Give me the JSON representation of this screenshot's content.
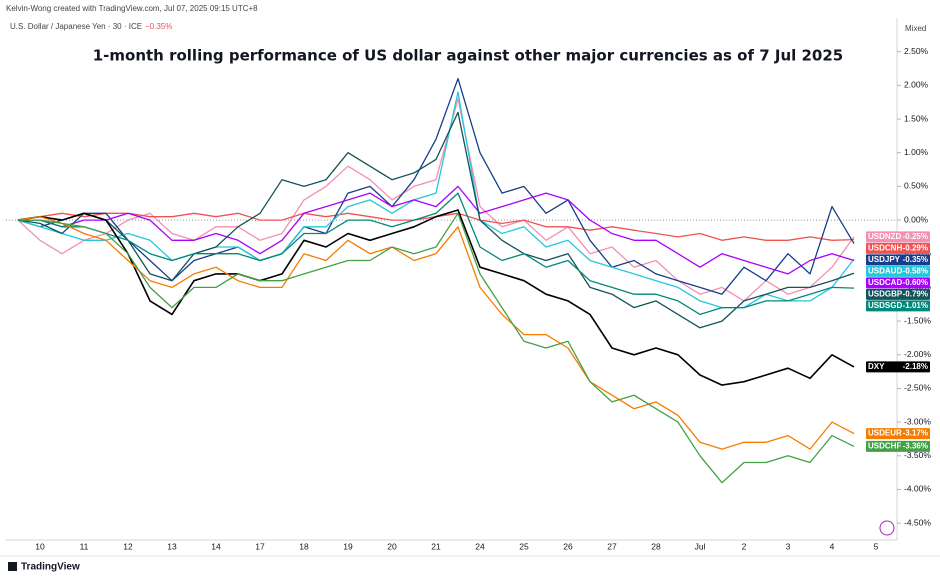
{
  "header": {
    "author_line": "Kelvin-Wong created with TradingView.com, Jul 07, 2025 09:15 UTC+8",
    "symbol_line": "U.S. Dollar / Japanese Yen · 30 · ICE",
    "change": "−0.35%",
    "mode": "Mixed",
    "brand": "TradingView"
  },
  "chart_data": {
    "type": "line",
    "title": "1-month rolling performance of US dollar against other major currencies as of 7 Jul 2025",
    "categories": [
      null,
      "10",
      null,
      "11",
      null,
      "12",
      null,
      "13",
      null,
      "14",
      null,
      "17",
      null,
      "18",
      null,
      "19",
      null,
      "20",
      null,
      "21",
      null,
      "24",
      null,
      "25",
      null,
      "26",
      null,
      "27",
      null,
      "28",
      null,
      "Jul",
      null,
      "2",
      null,
      "3",
      null,
      "4",
      null,
      "5"
    ],
    "ylim": [
      -4.75,
      3.0
    ],
    "yticks": [
      {
        "value": 2.5,
        "label": "2.50%"
      },
      {
        "value": 2.0,
        "label": "2.00%"
      },
      {
        "value": 1.5,
        "label": "1.50%"
      },
      {
        "value": 1.0,
        "label": "1.00%"
      },
      {
        "value": 0.5,
        "label": "0.50%"
      },
      {
        "value": 0.0,
        "label": "0.00%"
      },
      {
        "value": -0.5,
        "label": "-0.50%"
      },
      {
        "value": -1.0,
        "label": "-1.00%"
      },
      {
        "value": -1.5,
        "label": "-1.50%"
      },
      {
        "value": -2.0,
        "label": "-2.00%"
      },
      {
        "value": -2.5,
        "label": "-2.50%"
      },
      {
        "value": -3.0,
        "label": "-3.00%"
      },
      {
        "value": -3.5,
        "label": "-3.50%"
      },
      {
        "value": -4.0,
        "label": "-4.00%"
      },
      {
        "value": -4.5,
        "label": "-4.50%"
      }
    ],
    "grid": false,
    "series": [
      {
        "name": "USDNZD",
        "color": "#f48fb1",
        "value_label": "-0.25%",
        "values": [
          0,
          -0.3,
          -0.5,
          -0.3,
          -0.2,
          0,
          0.1,
          -0.2,
          -0.3,
          -0.1,
          -0.1,
          -0.3,
          -0.2,
          0.3,
          0.5,
          0.8,
          0.6,
          0.3,
          0.5,
          0.6,
          1.8,
          0.2,
          -0.1,
          0,
          -0.3,
          -0.1,
          -0.5,
          -0.4,
          -0.7,
          -0.6,
          -0.9,
          -1.1,
          -1.0,
          -1.2,
          -0.9,
          -1.1,
          -1.0,
          -0.7,
          -0.25,
          null
        ]
      },
      {
        "name": "USDCNH",
        "color": "#ef5350",
        "value_label": "-0.29%",
        "values": [
          0,
          0.05,
          0.1,
          0.05,
          0.1,
          0.1,
          0.05,
          0.05,
          0.1,
          0.05,
          0.1,
          0,
          0,
          0.1,
          0.05,
          0.1,
          0.05,
          0,
          0,
          0.05,
          0.1,
          0,
          -0.05,
          0,
          -0.1,
          -0.1,
          -0.15,
          -0.1,
          -0.15,
          -0.2,
          -0.25,
          -0.2,
          -0.3,
          -0.25,
          -0.3,
          -0.3,
          -0.25,
          -0.3,
          -0.29,
          null
        ]
      },
      {
        "name": "USDJPY",
        "color": "#173e8c",
        "value_label": "-0.35%",
        "values": [
          0,
          -0.1,
          0,
          0.1,
          0.1,
          -0.3,
          -0.6,
          -0.9,
          -0.6,
          -0.5,
          -0.4,
          -0.6,
          -0.5,
          -0.1,
          -0.2,
          0.4,
          0.5,
          0.2,
          0.6,
          1.2,
          2.1,
          1.0,
          0.4,
          0.5,
          0.1,
          0.3,
          -0.3,
          -0.7,
          -0.6,
          -0.8,
          -0.9,
          -1.0,
          -1.1,
          -0.7,
          -0.9,
          -0.5,
          -0.8,
          0.2,
          -0.35,
          null
        ]
      },
      {
        "name": "USDAUD",
        "color": "#26c6da",
        "value_label": "-0.58%",
        "values": [
          0,
          -0.1,
          -0.2,
          -0.3,
          -0.3,
          -0.2,
          -0.3,
          -0.6,
          -0.5,
          -0.4,
          -0.4,
          -0.6,
          -0.5,
          -0.1,
          -0.1,
          0.2,
          0.3,
          0.1,
          0.3,
          0.4,
          1.9,
          0,
          -0.2,
          -0.1,
          -0.4,
          -0.3,
          -0.6,
          -0.7,
          -0.8,
          -0.9,
          -1.0,
          -1.2,
          -1.3,
          -1.3,
          -1.1,
          -1.2,
          -1.2,
          -1.0,
          -0.58,
          null
        ]
      },
      {
        "name": "USDCAD",
        "color": "#aa00ff",
        "value_label": "-0.60%",
        "values": [
          0,
          0,
          -0.1,
          0,
          0,
          0.1,
          0,
          -0.3,
          -0.3,
          -0.2,
          -0.3,
          -0.5,
          -0.3,
          0.1,
          0.2,
          0.3,
          0.4,
          0.2,
          0.3,
          0.2,
          0.5,
          0.1,
          0.2,
          0.3,
          0.4,
          0.3,
          0,
          -0.2,
          -0.3,
          -0.3,
          -0.5,
          -0.7,
          -0.5,
          -0.6,
          -0.7,
          -0.8,
          -0.6,
          -0.5,
          -0.6,
          null
        ]
      },
      {
        "name": "USDGBP",
        "color": "#13535a",
        "value_label": "-0.79%",
        "values": [
          0,
          -0.05,
          -0.2,
          0.1,
          0,
          -0.3,
          -0.8,
          -0.9,
          -0.5,
          -0.4,
          -0.1,
          0.1,
          0.6,
          0.5,
          0.6,
          1.0,
          0.8,
          0.6,
          0.7,
          0.9,
          1.6,
          0,
          -0.3,
          -0.5,
          -0.6,
          -0.5,
          -1.0,
          -1.1,
          -1.3,
          -1.2,
          -1.4,
          -1.6,
          -1.5,
          -1.2,
          -1.1,
          -1.0,
          -1.0,
          -0.9,
          -0.79,
          null
        ]
      },
      {
        "name": "USDSGD",
        "color": "#00897b",
        "value_label": "-1.01%",
        "values": [
          0,
          0,
          -0.1,
          -0.1,
          -0.2,
          -0.3,
          -0.5,
          -0.6,
          -0.5,
          -0.5,
          -0.5,
          -0.6,
          -0.5,
          -0.2,
          -0.2,
          0,
          0,
          -0.1,
          0,
          0.1,
          0.4,
          -0.4,
          -0.6,
          -0.5,
          -0.7,
          -0.6,
          -0.9,
          -1.0,
          -1.1,
          -1.1,
          -1.2,
          -1.4,
          -1.3,
          -1.3,
          -1.2,
          -1.2,
          -1.1,
          -1.0,
          -1.01,
          null
        ]
      },
      {
        "name": "DXY",
        "color": "#000000",
        "value_label": "-2.18%",
        "values": [
          0,
          0.05,
          0,
          0.1,
          0,
          -0.5,
          -1.2,
          -1.4,
          -0.9,
          -0.8,
          -0.8,
          -0.9,
          -0.8,
          -0.3,
          -0.4,
          -0.2,
          -0.3,
          -0.2,
          -0.1,
          0.05,
          0.15,
          -0.7,
          -0.8,
          -0.9,
          -1.1,
          -1.2,
          -1.4,
          -1.9,
          -2.0,
          -1.9,
          -2.0,
          -2.3,
          -2.45,
          -2.4,
          -2.3,
          -2.2,
          -2.35,
          -2.0,
          -2.18,
          null
        ]
      },
      {
        "name": "USDEUR",
        "color": "#f57c00",
        "value_label": "-3.17%",
        "values": [
          0,
          0.05,
          -0.05,
          -0.2,
          -0.3,
          -0.6,
          -0.9,
          -1.0,
          -0.8,
          -0.7,
          -0.9,
          -1.0,
          -1.0,
          -0.5,
          -0.6,
          -0.3,
          -0.5,
          -0.4,
          -0.6,
          -0.5,
          -0.1,
          -1.0,
          -1.4,
          -1.7,
          -1.7,
          -1.9,
          -2.4,
          -2.6,
          -2.8,
          -2.7,
          -2.9,
          -3.3,
          -3.4,
          -3.3,
          -3.3,
          -3.2,
          -3.4,
          -3.0,
          -3.17,
          null
        ]
      },
      {
        "name": "USDCHF",
        "color": "#43a047",
        "value_label": "-3.36%",
        "values": [
          0,
          0,
          -0.05,
          -0.1,
          -0.2,
          -0.5,
          -1.0,
          -1.3,
          -1.0,
          -1.0,
          -0.8,
          -0.9,
          -0.9,
          -0.8,
          -0.7,
          -0.6,
          -0.6,
          -0.4,
          -0.5,
          -0.4,
          0.1,
          -0.8,
          -1.3,
          -1.8,
          -1.9,
          -1.8,
          -2.4,
          -2.7,
          -2.6,
          -2.8,
          -3.0,
          -3.5,
          -3.9,
          -3.6,
          -3.6,
          -3.5,
          -3.6,
          -3.2,
          -3.36,
          null
        ]
      }
    ]
  }
}
